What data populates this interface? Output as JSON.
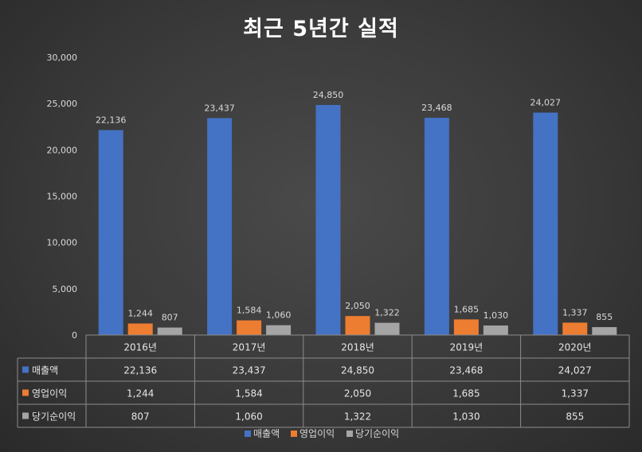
{
  "chart_data": {
    "type": "bar",
    "title": "최근 5년간 실적",
    "categories": [
      "2016년",
      "2017년",
      "2018년",
      "2019년",
      "2020년"
    ],
    "series": [
      {
        "name": "매출액",
        "color": "#4472C4",
        "values": [
          22136,
          23437,
          24850,
          23468,
          24027
        ],
        "labels": [
          "22,136",
          "23,437",
          "24,850",
          "23,468",
          "24,027"
        ]
      },
      {
        "name": "영업이익",
        "color": "#ED7D31",
        "values": [
          1244,
          1584,
          2050,
          1685,
          1337
        ],
        "labels": [
          "1,244",
          "1,584",
          "2,050",
          "1,685",
          "1,337"
        ]
      },
      {
        "name": "당기순이익",
        "color": "#A5A5A5",
        "values": [
          807,
          1060,
          1322,
          1030,
          855
        ],
        "labels": [
          "807",
          "1,060",
          "1,322",
          "1,030",
          "855"
        ]
      }
    ],
    "ylim": [
      0,
      30000
    ],
    "yticks": [
      0,
      5000,
      10000,
      15000,
      20000,
      25000,
      30000
    ],
    "ytick_labels": [
      "0",
      "5,000",
      "10,000",
      "15,000",
      "20,000",
      "25,000",
      "30,000"
    ],
    "data_table": true,
    "legend_position": "bottom"
  }
}
